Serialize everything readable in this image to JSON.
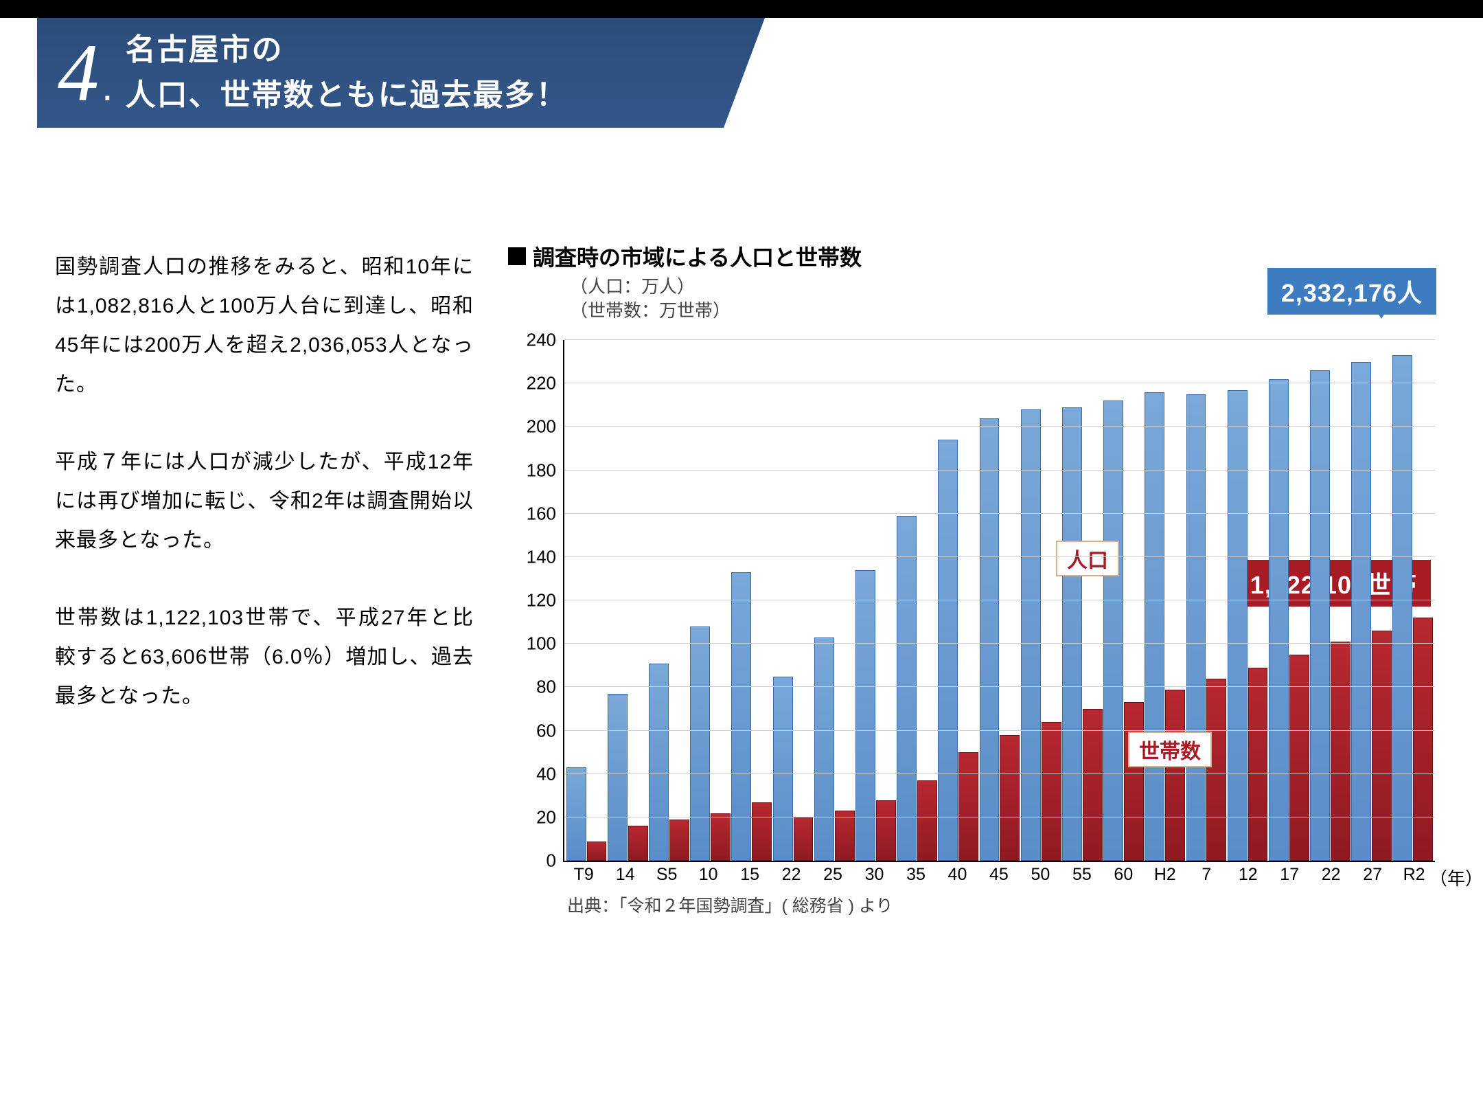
{
  "header": {
    "number": "4",
    "dot": ".",
    "title_line1": "名古屋市の",
    "title_line2": "人口、世帯数ともに過去最多！"
  },
  "paragraphs": [
    "国勢調査人口の推移をみると、昭和10年には1,082,816人と100万人台に到達し、昭和45年には200万人を超え2,036,053人となった。",
    "平成７年には人口が減少したが、平成12年には再び増加に転じ、令和2年は調査開始以来最多となった。",
    "世帯数は1,122,103世帯で、平成27年と比較すると63,606世帯（6.0％）増加し、過去最多となった。"
  ],
  "chart": {
    "title_prefix_icon": "■",
    "title": "調査時の市域による人口と世帯数",
    "sub1": "（人口：万人）",
    "sub2": "（世帯数：万世帯）",
    "callout_population": "2,332,176人",
    "callout_households": "1,122,103世帯",
    "inline_label_population": "人口",
    "inline_label_households": "世帯数",
    "type": "grouped-bar",
    "ylim": [
      0,
      240
    ],
    "ytick_step": 20,
    "yticks": [
      0,
      20,
      40,
      60,
      80,
      100,
      120,
      140,
      160,
      180,
      200,
      220,
      240
    ],
    "background_color": "#ffffff",
    "grid_color": "#d0d0d0",
    "axis_color": "#000000",
    "series": {
      "population": {
        "color": "#5a8cc8",
        "border_color": "#3a6ca8",
        "label": "人口"
      },
      "households": {
        "color": "#8f1a22",
        "border_color": "#6a1018",
        "label": "世帯数"
      }
    },
    "categories": [
      "T9",
      "14",
      "S5",
      "10",
      "15",
      "22",
      "25",
      "30",
      "35",
      "40",
      "45",
      "50",
      "55",
      "60",
      "H2",
      "7",
      "12",
      "17",
      "22",
      "27",
      "R2"
    ],
    "population_values": [
      43,
      77,
      91,
      108,
      133,
      85,
      103,
      134,
      159,
      194,
      204,
      208,
      209,
      212,
      216,
      215,
      217,
      222,
      226,
      230,
      233
    ],
    "household_values": [
      9,
      16,
      19,
      22,
      27,
      20,
      23,
      28,
      37,
      50,
      58,
      64,
      70,
      73,
      79,
      84,
      89,
      95,
      101,
      106,
      112
    ],
    "x_axis_unit": "（年）",
    "source": "出典：「令和２年国勢調査」( 総務省 ) より",
    "tick_fontsize": 26,
    "title_fontsize": 32,
    "callout_fontsize": 36
  }
}
